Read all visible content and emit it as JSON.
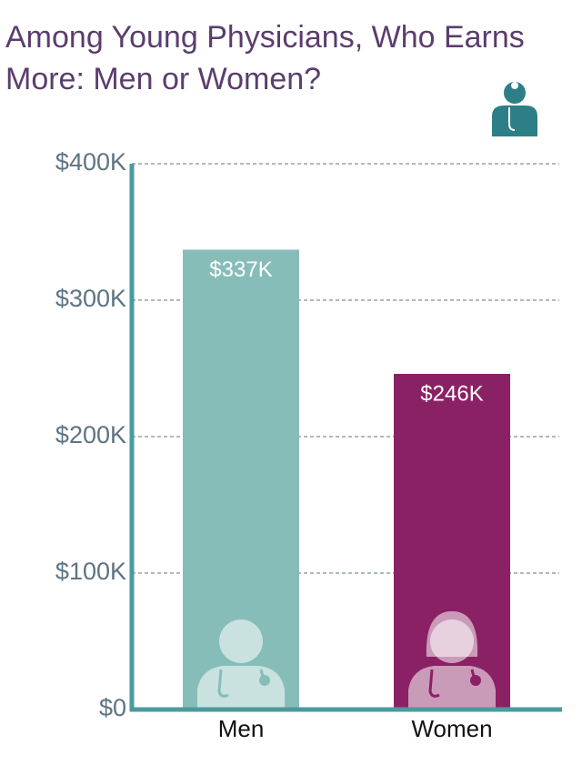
{
  "chart_data": {
    "type": "bar",
    "title": "Among Young Physicians, Who Earns More: Men or Women?",
    "categories": [
      "Men",
      "Women"
    ],
    "values": [
      337000,
      246000
    ],
    "value_labels": [
      "$337K",
      "$246K"
    ],
    "colors": [
      "#87bdb8",
      "#8b2165"
    ],
    "ylim": [
      0,
      400000
    ],
    "yticks": [
      {
        "value": 0,
        "label": "$0"
      },
      {
        "value": 100000,
        "label": "$100K"
      },
      {
        "value": 200000,
        "label": "$200K"
      },
      {
        "value": 300000,
        "label": "$300K"
      },
      {
        "value": 400000,
        "label": "$400K"
      }
    ],
    "grid": true
  }
}
